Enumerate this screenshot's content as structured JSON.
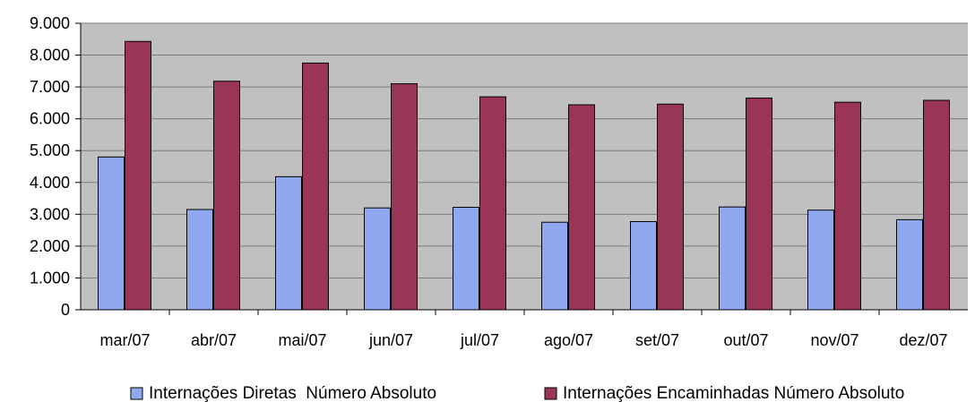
{
  "chart_data": {
    "type": "bar",
    "title": "",
    "xlabel": "",
    "ylabel": "",
    "categories": [
      "mar/07",
      "abr/07",
      "mai/07",
      "jun/07",
      "jul/07",
      "ago/07",
      "set/07",
      "out/07",
      "nov/07",
      "dez/07"
    ],
    "series": [
      {
        "name": "Internações Diretas  Número Absoluto",
        "color": "#8fa8f0",
        "values": [
          4800,
          3150,
          4180,
          3200,
          3220,
          2750,
          2770,
          3230,
          3130,
          2830
        ]
      },
      {
        "name": "Internações Encaminhadas Número Absoluto",
        "color": "#9b3558",
        "values": [
          8430,
          7180,
          7750,
          7100,
          6690,
          6440,
          6460,
          6650,
          6520,
          6580
        ]
      }
    ],
    "ylim": [
      0,
      9000
    ],
    "yticks": [
      0,
      1000,
      2000,
      3000,
      4000,
      5000,
      6000,
      7000,
      8000,
      9000
    ],
    "ytick_labels": [
      "0",
      "1.000",
      "2.000",
      "3.000",
      "4.000",
      "5.000",
      "6.000",
      "7.000",
      "8.000",
      "9.000"
    ],
    "plot_background": "#c0c0c0",
    "grid": true,
    "legend_position": "bottom"
  }
}
